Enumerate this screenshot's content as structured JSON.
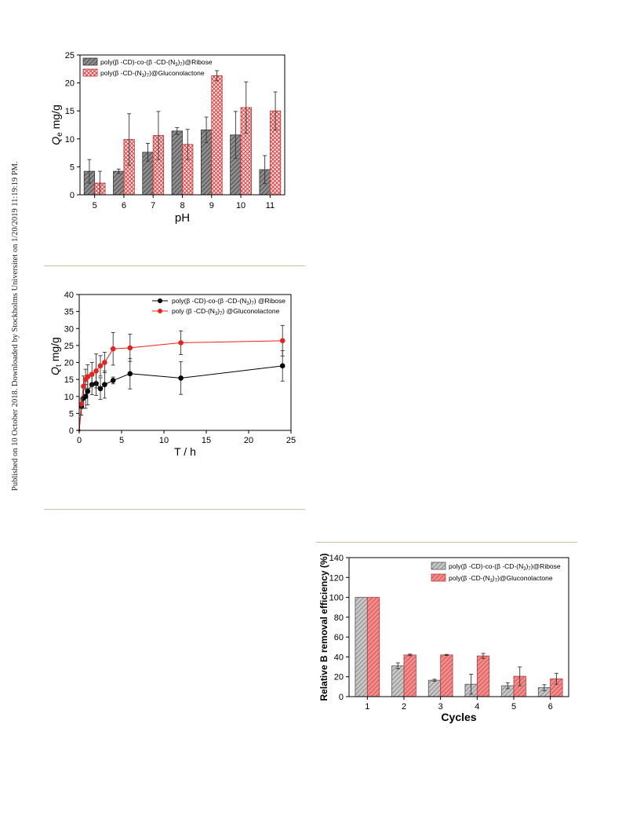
{
  "page": {
    "stamp": "Published on 10 October 2018. Downloaded by Stockholms Universitet on 1/20/2019 11:19:19 PM."
  },
  "chart_data": [
    {
      "type": "bar",
      "xlabel": "pH",
      "ylabel_main": "Q",
      "ylabel_sub": "e",
      "ylabel_unit": " mg/g",
      "categories": [
        "5",
        "6",
        "7",
        "8",
        "9",
        "10",
        "11"
      ],
      "ylim": [
        0,
        25
      ],
      "yticks": [
        "0",
        "5",
        "10",
        "15",
        "20",
        "25"
      ],
      "legend_position": "top-left",
      "series": [
        {
          "name": "poly(β -CD)-co-(β -CD-(N3)7)@Ribose",
          "name_parts": [
            "poly(β -CD)-co-(β -CD-(N",
            "3",
            ")",
            "7",
            ")@Ribose"
          ],
          "color": "#6e6e6e",
          "values": [
            4.2,
            4.2,
            7.6,
            11.4,
            11.6,
            10.7,
            4.5
          ],
          "errors": [
            2.1,
            0.4,
            1.6,
            0.6,
            2.3,
            4.2,
            2.5
          ]
        },
        {
          "name": "poly(β -CD-(N3)7)@Gluconolactone",
          "name_parts": [
            "poly(β -CD-(N",
            "3",
            ")",
            "7",
            ")@Gluconolactone"
          ],
          "color": "#e05050",
          "values": [
            2.1,
            9.9,
            10.6,
            9.0,
            21.3,
            15.6,
            15.0
          ],
          "errors": [
            2.1,
            4.6,
            4.3,
            2.7,
            0.9,
            4.6,
            3.4
          ]
        }
      ]
    },
    {
      "type": "line",
      "xlabel": "T / h",
      "ylabel_main": "Q",
      "ylabel_sub": "t",
      "ylabel_unit": " mg/g",
      "xlim": [
        0,
        25
      ],
      "ylim": [
        0,
        40
      ],
      "xticks": [
        "0",
        "5",
        "10",
        "15",
        "20",
        "25"
      ],
      "yticks": [
        "0",
        "5",
        "10",
        "15",
        "20",
        "25",
        "30",
        "35",
        "40"
      ],
      "legend_position": "top-right",
      "series": [
        {
          "name": "poly(β -CD)-co-(β -CD-(N3)7) @Ribose",
          "name_parts": [
            "poly(β -CD)-co-(β -CD-(N",
            "3",
            ")",
            "7",
            ") @Ribose"
          ],
          "color": "#000000",
          "x": [
            0,
            0.25,
            0.5,
            0.75,
            1,
            1.5,
            2,
            2.5,
            3,
            4,
            6,
            12,
            24
          ],
          "y": [
            0,
            7.0,
            9.5,
            10.0,
            11.5,
            13.5,
            13.8,
            12.3,
            13.5,
            14.7,
            16.7,
            15.4,
            19.0
          ],
          "errors": [
            0,
            2.5,
            3.0,
            3.5,
            4.0,
            3.0,
            3.5,
            3.2,
            4.0,
            1.0,
            4.5,
            4.8,
            4.5
          ]
        },
        {
          "name": "poly (β -CD-(N3)7) @Gluconolactone",
          "name_parts": [
            "poly (β -CD-(N",
            "3",
            ")",
            "7",
            ") @Gluconolactone"
          ],
          "color": "#e8231e",
          "x": [
            0,
            0.25,
            0.5,
            0.75,
            1,
            1.5,
            2,
            2.5,
            3,
            4,
            6,
            12,
            24
          ],
          "y": [
            0,
            7.8,
            13.0,
            15.0,
            15.8,
            16.5,
            17.5,
            19.0,
            20.0,
            24.0,
            24.3,
            25.8,
            26.4
          ],
          "errors": [
            0,
            1.2,
            3.0,
            3.0,
            3.5,
            3.5,
            5.0,
            3.0,
            3.0,
            4.8,
            4.0,
            3.5,
            4.5
          ]
        }
      ]
    },
    {
      "type": "bar",
      "xlabel": "Cycles",
      "ylabel": "Relative B removal efficiency (%)",
      "categories": [
        "1",
        "2",
        "3",
        "4",
        "5",
        "6"
      ],
      "ylim": [
        0,
        140
      ],
      "yticks": [
        "0",
        "20",
        "40",
        "60",
        "80",
        "100",
        "120",
        "140"
      ],
      "legend_position": "top-right",
      "series": [
        {
          "name": "poly(β -CD)-co-(β -CD-(N3)7)@Ribose",
          "name_parts": [
            "poly(β -CD)-co-(β -CD-(N",
            "3",
            ")",
            "7",
            ")@Ribose"
          ],
          "color": "#9a9a9a",
          "values": [
            100,
            31,
            16.5,
            12.5,
            11,
            9
          ],
          "errors": [
            0,
            3,
            1,
            10,
            3,
            3
          ]
        },
        {
          "name": "poly(β -CD-(N3)7)@Gluconolactone",
          "name_parts": [
            "poly(β -CD-(N",
            "3",
            ")",
            "7",
            ")@Gluconolactone"
          ],
          "color": "#ef7070",
          "values": [
            100,
            42,
            42,
            41,
            20.5,
            18
          ],
          "errors": [
            0,
            0.8,
            0.5,
            2.5,
            9.5,
            5.5
          ]
        }
      ]
    }
  ]
}
